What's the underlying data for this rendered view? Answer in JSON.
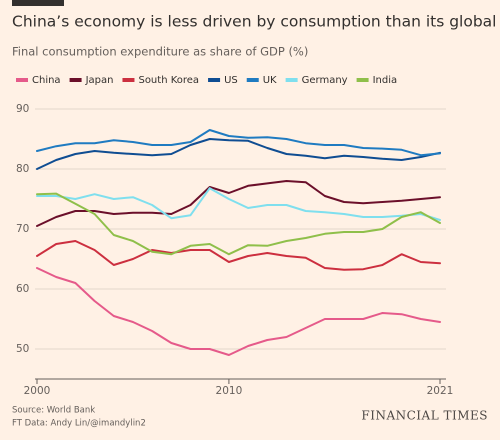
{
  "chart_data": {
    "type": "line",
    "title": "China’s economy is less driven by consumption than its global peers",
    "subtitle": "Final consumption expenditure as share of GDP (%)",
    "source": "Source: World Bank",
    "credit": "FT Data: Andy Lin/@imandylin2",
    "brand": "FINANCIAL TIMES",
    "x": [
      2000,
      2001,
      2002,
      2003,
      2004,
      2005,
      2006,
      2007,
      2008,
      2009,
      2010,
      2011,
      2012,
      2013,
      2014,
      2015,
      2016,
      2017,
      2018,
      2019,
      2020,
      2021
    ],
    "xlim": [
      2000,
      2021
    ],
    "xticks": [
      2000,
      2010,
      2021
    ],
    "ylim": [
      45,
      90
    ],
    "yticks": [
      50,
      60,
      70,
      80,
      90
    ],
    "grid": true,
    "legend": "top",
    "series": [
      {
        "name": "China",
        "color": "#e55a8a",
        "values": [
          63.5,
          62,
          61,
          58,
          55.5,
          54.5,
          53,
          51,
          50,
          50,
          49,
          50.5,
          51.5,
          52,
          53.5,
          55,
          55,
          55,
          56,
          55.8,
          55,
          54.5
        ]
      },
      {
        "name": "Japan",
        "color": "#6b0f2a",
        "values": [
          70.5,
          72,
          73,
          73,
          72.5,
          72.7,
          72.7,
          72.5,
          74,
          77,
          76,
          77.2,
          77.6,
          78,
          77.8,
          75.5,
          74.5,
          74.3,
          74.5,
          74.7,
          75,
          75.3
        ]
      },
      {
        "name": "South Korea",
        "color": "#cc2f3f",
        "values": [
          65.5,
          67.5,
          68,
          66.5,
          64,
          65,
          66.5,
          66,
          66.5,
          66.5,
          64.5,
          65.5,
          66,
          65.5,
          65.2,
          63.5,
          63.2,
          63.3,
          64,
          65.8,
          64.5,
          64.3
        ]
      },
      {
        "name": "US",
        "color": "#0f4d92",
        "values": [
          80,
          81.5,
          82.5,
          83,
          82.7,
          82.5,
          82.3,
          82.5,
          84,
          85,
          84.8,
          84.7,
          83.5,
          82.5,
          82.2,
          81.8,
          82.2,
          82,
          81.7,
          81.5,
          82,
          82.7
        ]
      },
      {
        "name": "UK",
        "color": "#1f7bc1",
        "values": [
          83,
          83.8,
          84.3,
          84.3,
          84.8,
          84.5,
          84,
          84,
          84.5,
          86.5,
          85.5,
          85.2,
          85.3,
          85,
          84.3,
          84,
          84,
          83.5,
          83.4,
          83.2,
          82.3,
          82.6
        ]
      },
      {
        "name": "Germany",
        "color": "#7fdfee",
        "values": [
          75.5,
          75.5,
          75,
          75.8,
          75,
          75.3,
          74,
          71.8,
          72.3,
          76.8,
          75,
          73.5,
          74,
          74,
          73,
          72.8,
          72.5,
          72,
          72,
          72.2,
          72.5,
          71.5
        ]
      },
      {
        "name": "India",
        "color": "#8fbf4a",
        "values": [
          75.8,
          75.9,
          74.2,
          72.5,
          69,
          68,
          66.2,
          65.8,
          67.2,
          67.5,
          65.8,
          67.3,
          67.2,
          68,
          68.5,
          69.2,
          69.5,
          69.5,
          70,
          72,
          72.8,
          71
        ]
      }
    ]
  }
}
